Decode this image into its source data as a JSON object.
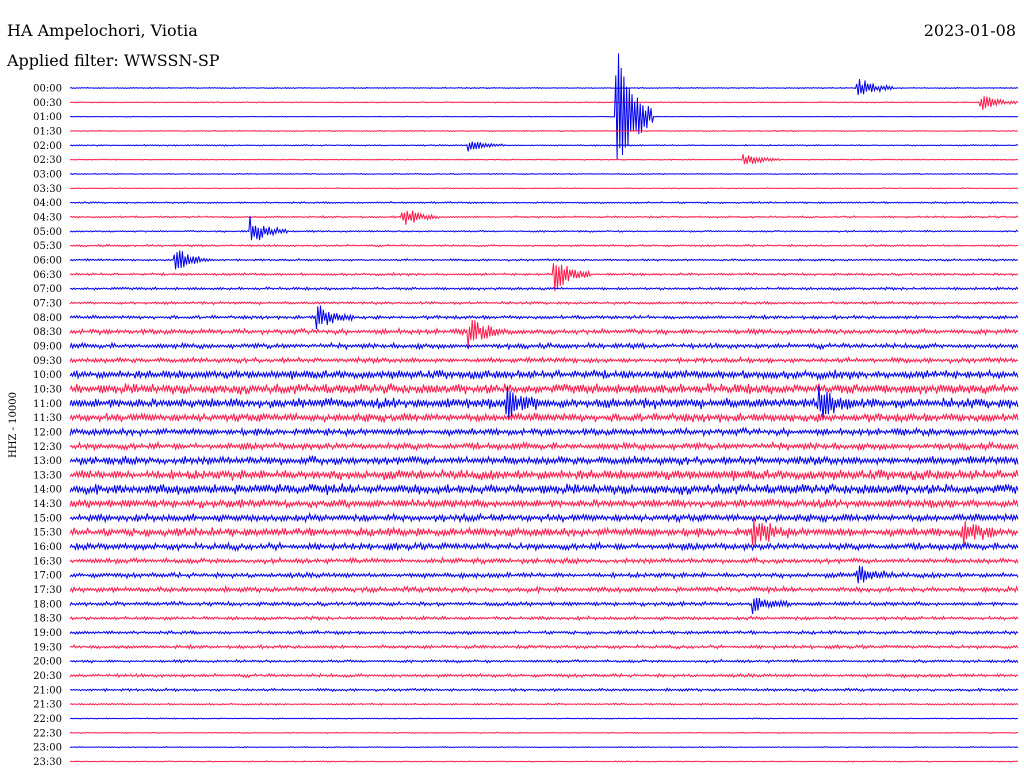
{
  "header": {
    "station": "HA Ampelochori, Viotia",
    "date": "2023-01-08",
    "filter_label": "Applied filter: WWSSN-SP"
  },
  "chart_data": {
    "type": "line",
    "title": "HA Ampelochori, Viotia",
    "subtitle": "Applied filter: WWSSN-SP",
    "date": "2023-01-08",
    "ylabel": "HHZ - 10000",
    "xlabel": "",
    "trace_colors": [
      "#0000ee",
      "#ff1a4a"
    ],
    "grid": false,
    "time_labels": [
      "00:00",
      "00:30",
      "01:00",
      "01:30",
      "02:00",
      "02:30",
      "03:00",
      "03:30",
      "04:00",
      "04:30",
      "05:00",
      "05:30",
      "06:00",
      "06:30",
      "07:00",
      "07:30",
      "08:00",
      "08:30",
      "09:00",
      "09:30",
      "10:00",
      "10:30",
      "11:00",
      "11:30",
      "12:00",
      "12:30",
      "13:00",
      "13:30",
      "14:00",
      "14:30",
      "15:00",
      "15:30",
      "16:00",
      "16:30",
      "17:00",
      "17:30",
      "18:00",
      "18:30",
      "19:00",
      "19:30",
      "20:00",
      "20:30",
      "21:00",
      "21:30",
      "22:00",
      "22:30",
      "23:00",
      "23:30"
    ],
    "series": [
      {
        "name": "HHZ",
        "noise_level": [
          0.03,
          0.03,
          0.02,
          0.03,
          0.04,
          0.03,
          0.03,
          0.03,
          0.05,
          0.05,
          0.05,
          0.06,
          0.06,
          0.07,
          0.08,
          0.08,
          0.1,
          0.15,
          0.15,
          0.15,
          0.25,
          0.3,
          0.3,
          0.25,
          0.2,
          0.2,
          0.25,
          0.3,
          0.3,
          0.25,
          0.22,
          0.25,
          0.2,
          0.15,
          0.15,
          0.15,
          0.12,
          0.1,
          0.1,
          0.1,
          0.08,
          0.1,
          0.08,
          0.05,
          0.03,
          0.03,
          0.03,
          0.03
        ]
      }
    ],
    "events": [
      {
        "row": 0,
        "x": 0.83,
        "amplitude": 0.9
      },
      {
        "row": 1,
        "x": 0.96,
        "amplitude": 0.6
      },
      {
        "row": 2,
        "x": 0.575,
        "amplitude": 6.0
      },
      {
        "row": 4,
        "x": 0.42,
        "amplitude": 0.4
      },
      {
        "row": 5,
        "x": 0.71,
        "amplitude": 0.5
      },
      {
        "row": 9,
        "x": 0.35,
        "amplitude": 0.8
      },
      {
        "row": 10,
        "x": 0.19,
        "amplitude": 1.1
      },
      {
        "row": 12,
        "x": 0.11,
        "amplitude": 1.0
      },
      {
        "row": 13,
        "x": 0.51,
        "amplitude": 1.4
      },
      {
        "row": 16,
        "x": 0.26,
        "amplitude": 1.0
      },
      {
        "row": 17,
        "x": 0.42,
        "amplitude": 1.0
      },
      {
        "row": 22,
        "x": 0.46,
        "amplitude": 1.1
      },
      {
        "row": 22,
        "x": 0.79,
        "amplitude": 1.3
      },
      {
        "row": 31,
        "x": 0.72,
        "amplitude": 1.0
      },
      {
        "row": 31,
        "x": 0.94,
        "amplitude": 0.9
      },
      {
        "row": 34,
        "x": 0.83,
        "amplitude": 0.7
      },
      {
        "row": 36,
        "x": 0.72,
        "amplitude": 0.6
      }
    ]
  }
}
